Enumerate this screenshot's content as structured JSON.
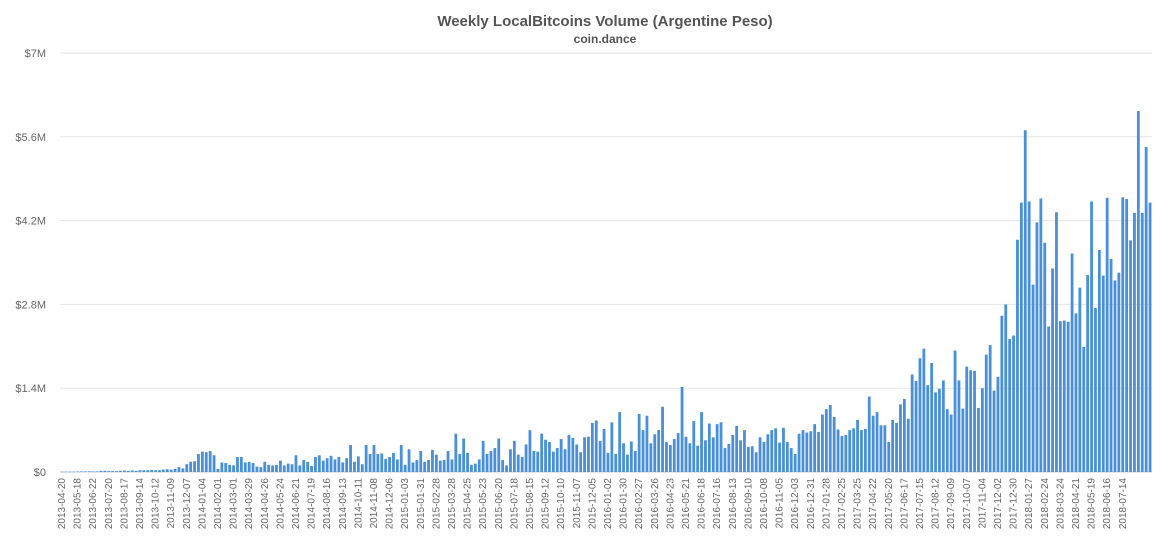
{
  "chart_data": {
    "type": "bar",
    "title": "Weekly LocalBitcoins Volume (Argentine Peso)",
    "subtitle": "coin.dance",
    "xlabel": "",
    "ylabel": "",
    "ylim": [
      0,
      7000000
    ],
    "yticks": [
      0,
      1400000,
      2800000,
      4200000,
      5600000,
      7000000
    ],
    "ytick_labels": [
      "$0",
      "$1.4M",
      "$2.8M",
      "$4.2M",
      "$5.6M",
      "$7M"
    ],
    "grid": true,
    "legend": "none",
    "bar_color": "#4a90d9",
    "x_tick_labels": [
      "2013-04-20",
      "2013-05-18",
      "2013-06-22",
      "2013-07-20",
      "2013-08-17",
      "2013-09-14",
      "2013-10-12",
      "2013-11-09",
      "2013-12-07",
      "2014-01-04",
      "2014-02-01",
      "2014-03-01",
      "2014-03-29",
      "2014-04-26",
      "2014-05-24",
      "2014-06-21",
      "2014-07-19",
      "2014-08-16",
      "2014-09-13",
      "2014-10-11",
      "2014-11-08",
      "2014-12-06",
      "2015-01-03",
      "2015-01-31",
      "2015-02-28",
      "2015-03-28",
      "2015-04-25",
      "2015-05-23",
      "2015-06-20",
      "2015-07-18",
      "2015-08-15",
      "2015-09-12",
      "2015-10-10",
      "2015-11-07",
      "2015-12-05",
      "2016-01-02",
      "2016-01-30",
      "2016-02-27",
      "2016-03-26",
      "2016-04-23",
      "2016-05-21",
      "2016-06-18",
      "2016-07-16",
      "2016-08-13",
      "2016-09-10",
      "2016-10-08",
      "2016-11-05",
      "2016-12-03",
      "2016-12-31",
      "2017-01-28",
      "2017-02-25",
      "2017-03-25",
      "2017-04-22",
      "2017-05-20",
      "2017-06-17",
      "2017-07-15",
      "2017-08-12",
      "2017-09-09",
      "2017-10-07",
      "2017-11-04",
      "2017-12-02",
      "2017-12-30",
      "2018-01-27",
      "2018-02-24",
      "2018-03-24",
      "2018-04-21",
      "2018-05-19",
      "2018-06-16",
      "2018-07-14"
    ],
    "values": [
      5000,
      5000,
      5000,
      5000,
      8000,
      10000,
      10000,
      12000,
      10000,
      10000,
      20000,
      20000,
      15000,
      15000,
      15000,
      20000,
      25000,
      20000,
      25000,
      20000,
      30000,
      30000,
      30000,
      35000,
      30000,
      30000,
      40000,
      45000,
      40000,
      50000,
      80000,
      60000,
      130000,
      170000,
      180000,
      300000,
      340000,
      330000,
      350000,
      280000,
      50000,
      160000,
      150000,
      120000,
      110000,
      250000,
      250000,
      160000,
      170000,
      150000,
      90000,
      80000,
      170000,
      120000,
      110000,
      120000,
      190000,
      110000,
      140000,
      130000,
      280000,
      110000,
      200000,
      170000,
      100000,
      250000,
      280000,
      190000,
      230000,
      270000,
      210000,
      250000,
      160000,
      230000,
      450000,
      170000,
      260000,
      130000,
      450000,
      300000,
      450000,
      300000,
      310000,
      220000,
      250000,
      320000,
      210000,
      450000,
      120000,
      380000,
      160000,
      200000,
      350000,
      170000,
      200000,
      370000,
      290000,
      190000,
      200000,
      350000,
      210000,
      640000,
      300000,
      560000,
      320000,
      120000,
      140000,
      210000,
      520000,
      300000,
      350000,
      400000,
      560000,
      200000,
      110000,
      380000,
      520000,
      290000,
      250000,
      460000,
      700000,
      350000,
      340000,
      640000,
      540000,
      500000,
      340000,
      400000,
      550000,
      380000,
      620000,
      570000,
      460000,
      330000,
      580000,
      590000,
      820000,
      860000,
      520000,
      720000,
      320000,
      830000,
      300000,
      1000000,
      480000,
      290000,
      510000,
      350000,
      970000,
      700000,
      940000,
      480000,
      630000,
      700000,
      1090000,
      500000,
      450000,
      550000,
      650000,
      1420000,
      590000,
      480000,
      850000,
      440000,
      1000000,
      530000,
      810000,
      580000,
      800000,
      830000,
      400000,
      470000,
      620000,
      770000,
      530000,
      700000,
      420000,
      430000,
      330000,
      580000,
      500000,
      630000,
      700000,
      730000,
      490000,
      740000,
      500000,
      400000,
      300000,
      640000,
      700000,
      660000,
      680000,
      800000,
      670000,
      960000,
      1050000,
      1120000,
      920000,
      710000,
      600000,
      620000,
      700000,
      730000,
      870000,
      700000,
      720000,
      1260000,
      940000,
      1000000,
      780000,
      780000,
      500000,
      870000,
      820000,
      1130000,
      1220000,
      890000,
      1630000,
      1520000,
      1900000,
      2060000,
      1450000,
      1820000,
      1330000,
      1390000,
      1530000,
      1050000,
      960000,
      2030000,
      1530000,
      1060000,
      1760000,
      1700000,
      1690000,
      1070000,
      1400000,
      1960000,
      2120000,
      1360000,
      1590000,
      2610000,
      2800000,
      2220000,
      2280000,
      3880000,
      4500000,
      5710000,
      4520000,
      3130000,
      4170000,
      4570000,
      3830000,
      2430000,
      3400000,
      4340000,
      2520000,
      2530000,
      2510000,
      3650000,
      2650000,
      3080000,
      2090000,
      3290000,
      4520000,
      2740000,
      3710000,
      3280000,
      4580000,
      3560000,
      3200000,
      3330000,
      4590000,
      4560000,
      3870000,
      4330000,
      6030000,
      4330000,
      5430000,
      4500000
    ]
  }
}
